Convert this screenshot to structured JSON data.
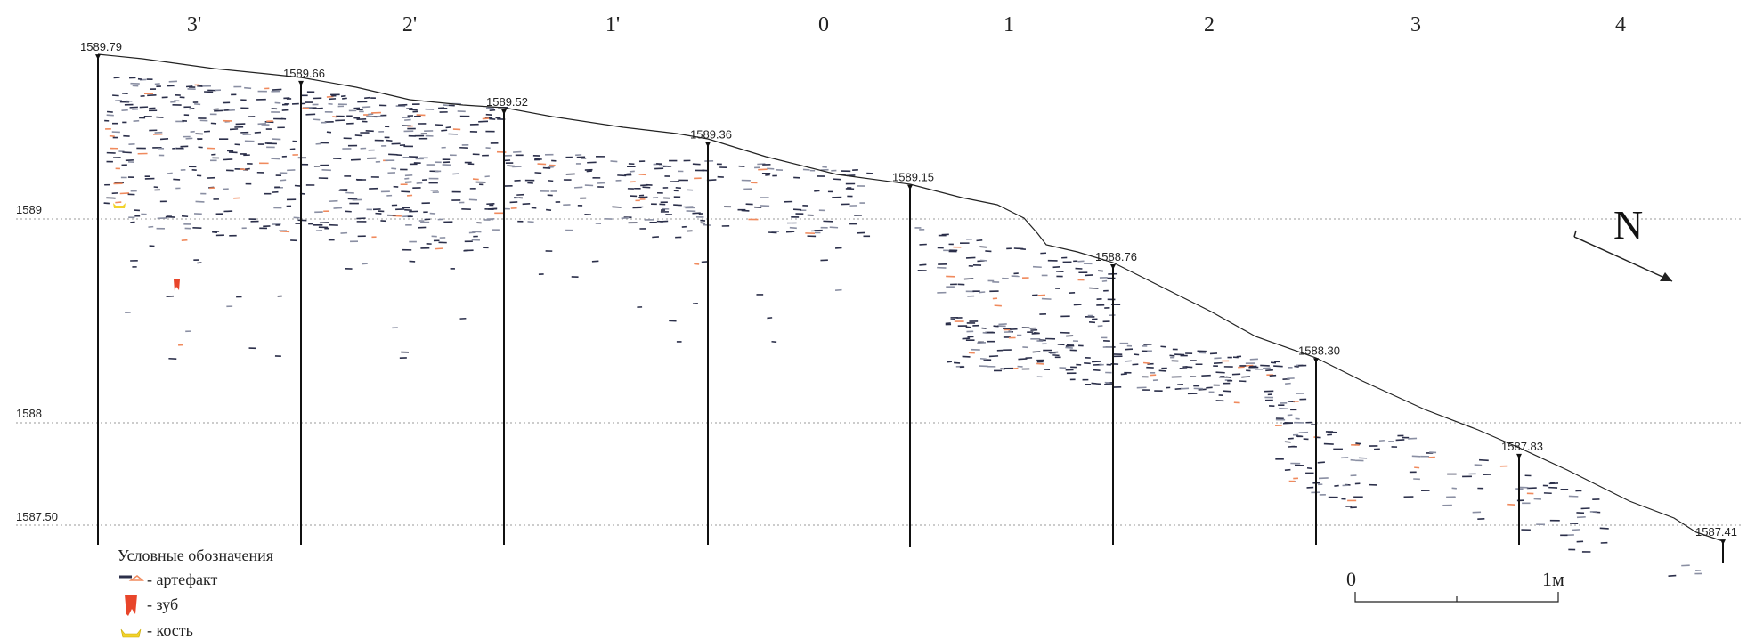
{
  "columns": [
    "3'",
    "2'",
    "1'",
    "0",
    "1",
    "2",
    "3",
    "4"
  ],
  "levels": [
    {
      "label": "1589",
      "value": 1589.0
    },
    {
      "label": "1588",
      "value": 1588.0
    },
    {
      "label": "1587.50",
      "value": 1587.5
    }
  ],
  "stakes": [
    {
      "label": "1589.79",
      "value": 1589.79
    },
    {
      "label": "1589.66",
      "value": 1589.66
    },
    {
      "label": "1589.52",
      "value": 1589.52
    },
    {
      "label": "1589.36",
      "value": 1589.36
    },
    {
      "label": "1589.15",
      "value": 1589.15
    },
    {
      "label": "1588.76",
      "value": 1588.76
    },
    {
      "label": "1588.30",
      "value": 1588.3
    },
    {
      "label": "1587.83",
      "value": 1587.83
    },
    {
      "label": "1587.41",
      "value": 1587.41
    }
  ],
  "north": {
    "label": "N"
  },
  "legend": {
    "title": "Условные обозначения",
    "items": [
      {
        "key": "artifact",
        "label": "- артефакт"
      },
      {
        "key": "tooth",
        "label": "- зуб"
      },
      {
        "key": "bone",
        "label": "- кость"
      }
    ]
  },
  "scale_bar": {
    "start_label": "0",
    "end_label": "1м"
  },
  "colors": {
    "line": "#111111",
    "grid": "#888888",
    "artifact_dark": "#2b2f4a",
    "artifact_gray": "#8a8fa3",
    "artifact_orange": "#f08a5d",
    "tooth": "#e8452a",
    "bone": "#f2d22b"
  }
}
